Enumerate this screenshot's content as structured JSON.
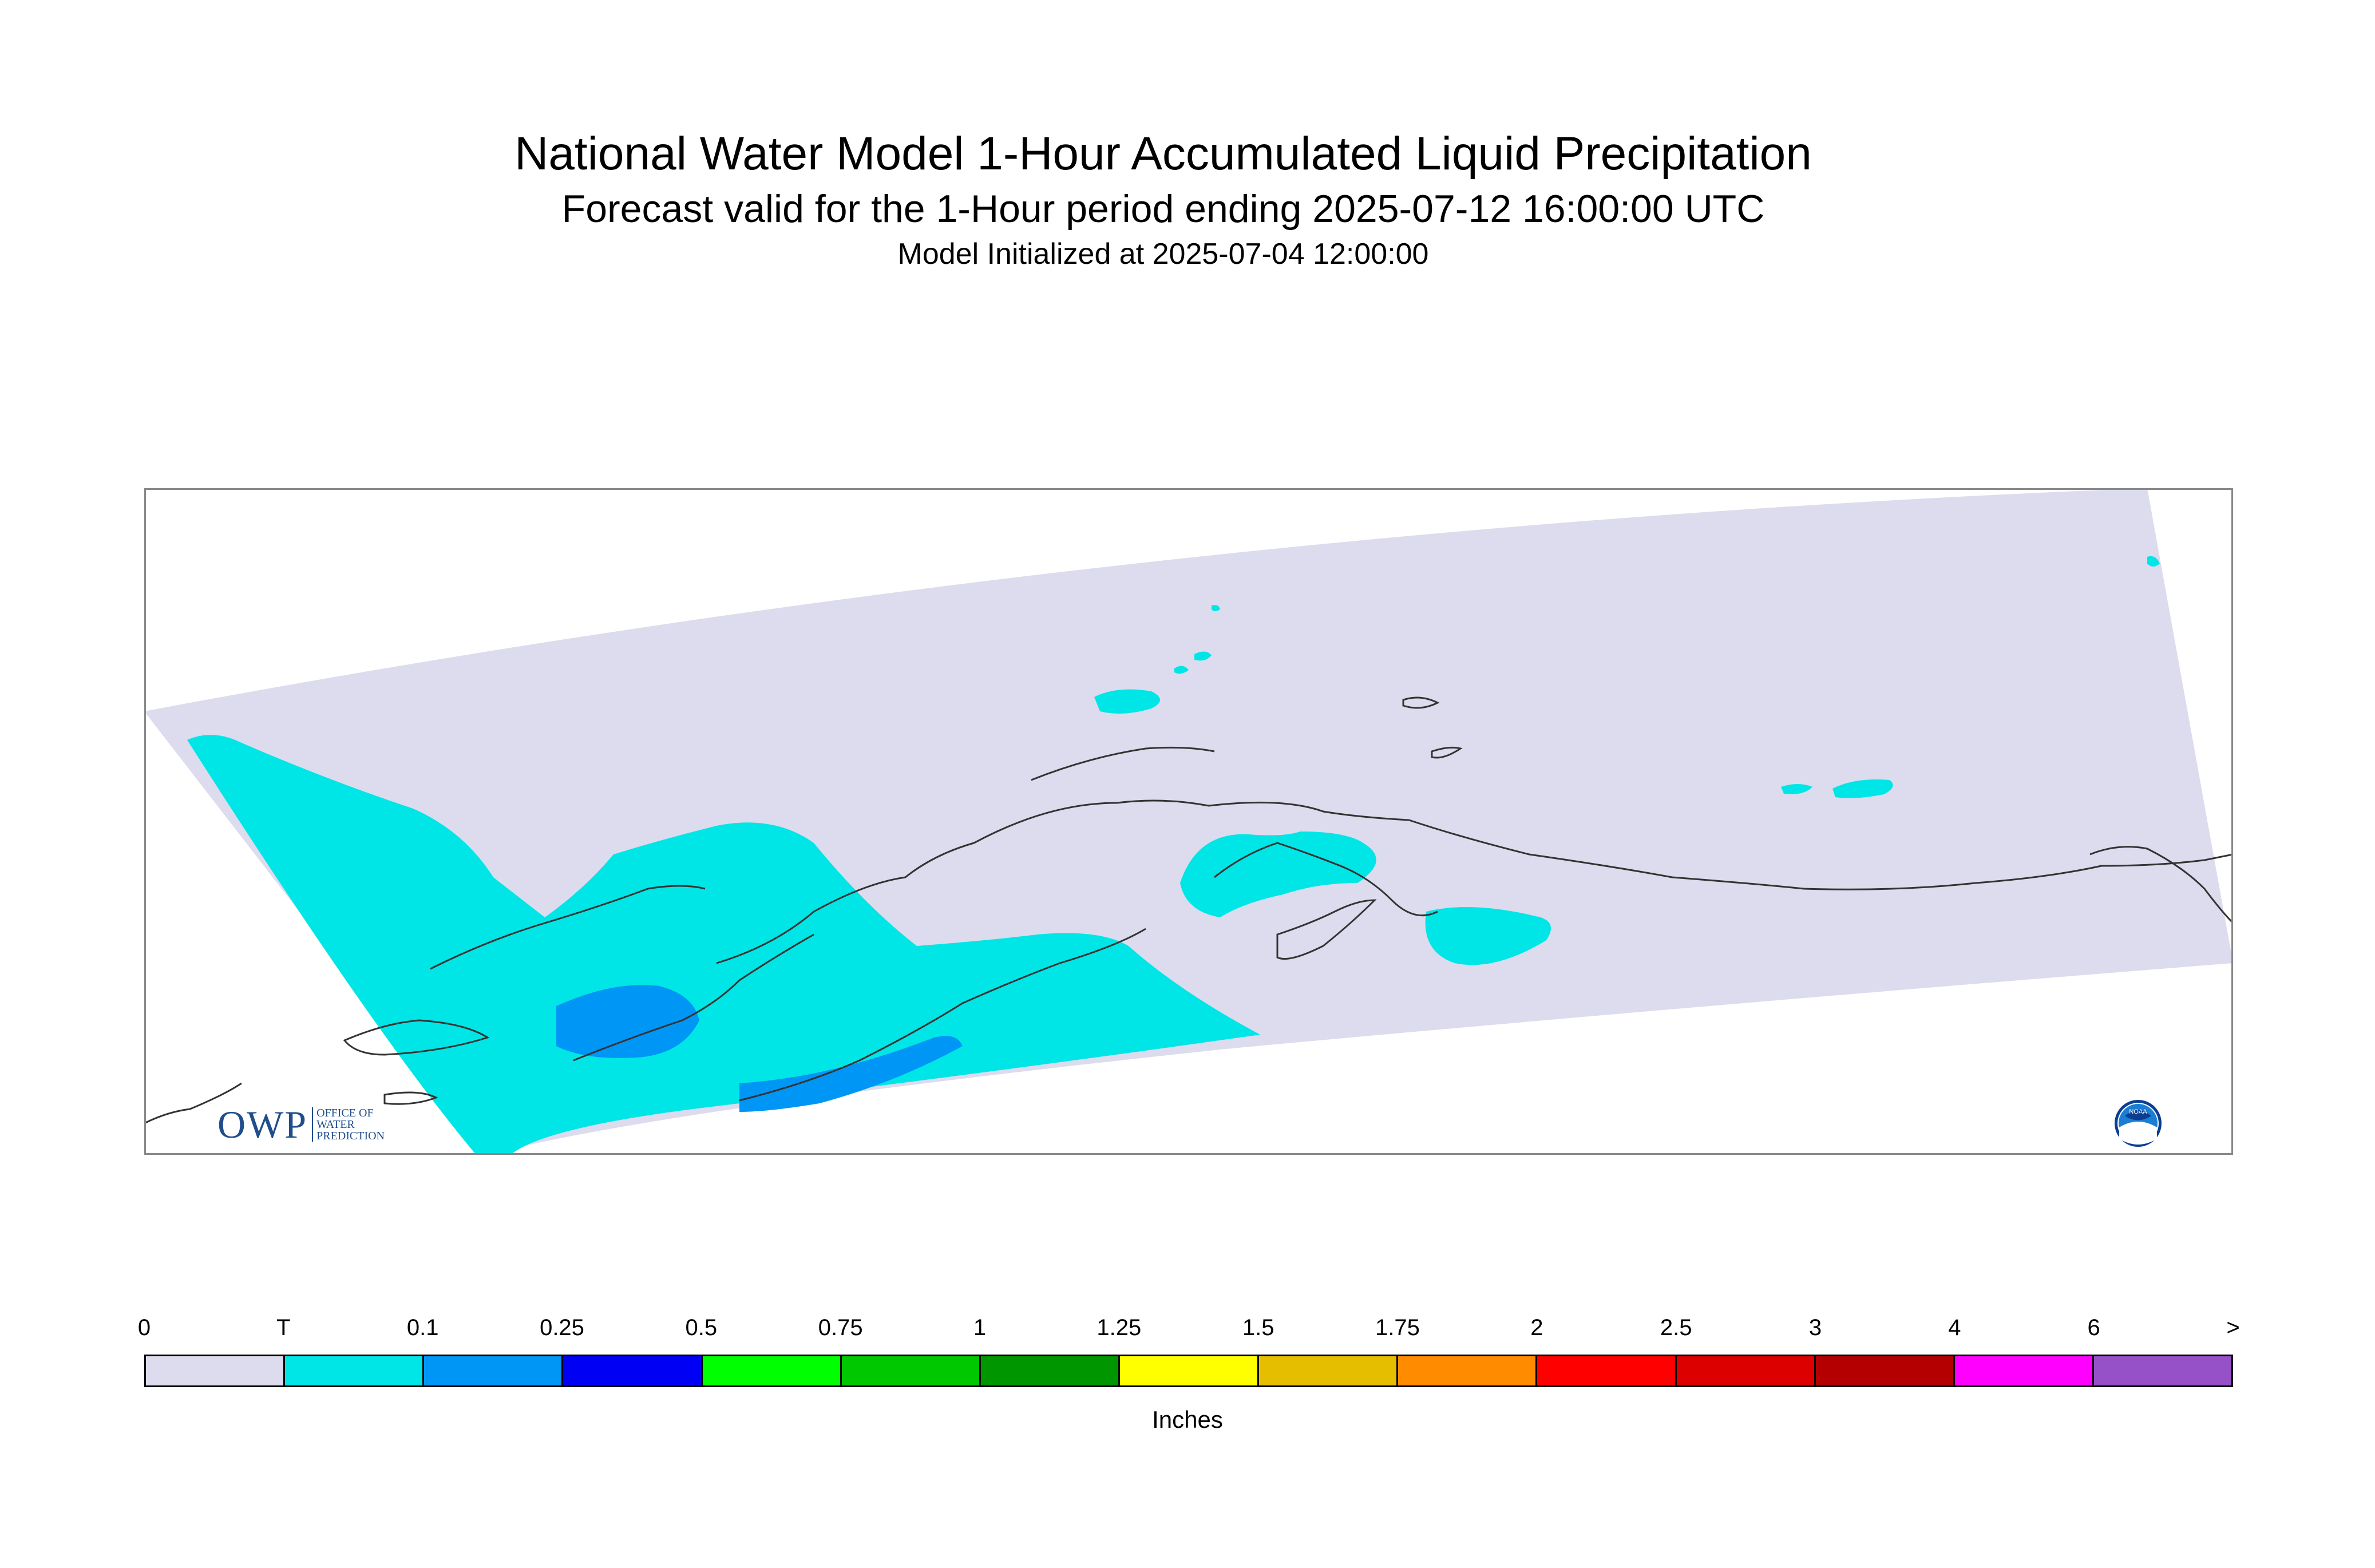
{
  "titles": {
    "line1": "National Water Model 1-Hour Accumulated Liquid Precipitation",
    "line2": "Forecast valid for the 1-Hour period ending 2025-07-12 16:00:00 UTC",
    "line3": "Model Initialized at 2025-07-04 12:00:00"
  },
  "legend": {
    "ticks": [
      "0",
      "T",
      "0.1",
      "0.25",
      "0.5",
      "0.75",
      "1",
      "1.25",
      "1.5",
      "1.75",
      "2",
      "2.5",
      "3",
      "4",
      "6",
      ">"
    ],
    "colors": [
      "#dcdcee",
      "#00e6e6",
      "#0096f5",
      "#0000f5",
      "#00ff00",
      "#00c800",
      "#009600",
      "#ffff00",
      "#e6be00",
      "#ff8c00",
      "#ff0000",
      "#dc0000",
      "#b40000",
      "#ff00ff",
      "#9650c8"
    ],
    "units": "Inches"
  },
  "map": {
    "domain_color": "#dcdcee",
    "trace_color": "#00e6e6",
    "light_color": "#0096f5",
    "coastline_color": "#333333"
  },
  "logos": {
    "owp_letters": "OWP",
    "owp_text": [
      "Office of",
      "Water",
      "Prediction"
    ],
    "noaa_text": "NOAA"
  }
}
